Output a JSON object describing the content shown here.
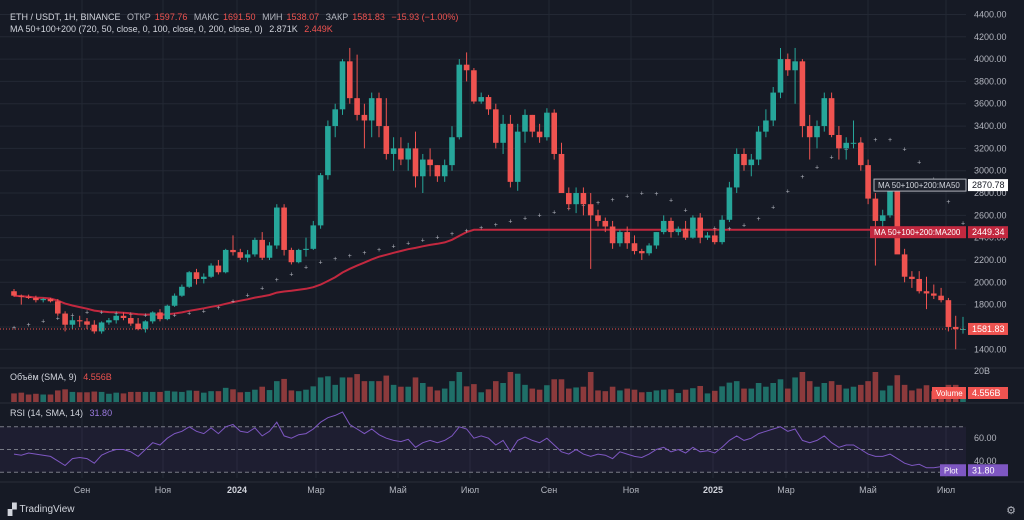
{
  "header": {
    "symbol": "ETH / USDT, 1H, BINANCE",
    "o_label": "ОТКР",
    "o_value": "1597.76",
    "h_label": "МАКС",
    "h_value": "1691.50",
    "l_label": "МИН",
    "l_value": "1538.07",
    "c_label": "ЗАКР",
    "c_value": "1581.83",
    "change": "−15.93 (−1.00%)",
    "ma_label": "MA 50+100+200 (720, 50, close, 0, 100, close, 0, 200, close, 0)",
    "ma_v1": "2.871K",
    "ma_v2": "2.449K"
  },
  "volume_panel": {
    "label": "Объём (SMA, 9)",
    "value": "4.556B"
  },
  "rsi_panel": {
    "label": "RSI (14, SMA, 14)",
    "value": "31.80"
  },
  "brand": "TradingView",
  "colors": {
    "up": "#26a69a",
    "down": "#ef5350",
    "ma50": "#b2b5be",
    "ma200": "#c2283f",
    "rsi": "#7e57c2"
  },
  "chart_data": {
    "type": "candlestick",
    "price_axis": {
      "ticks": [
        1400,
        1600,
        1800,
        2000,
        2200,
        2400,
        2600,
        2800,
        3000,
        3200,
        3400,
        3600,
        3800,
        4000,
        4200,
        4400
      ],
      "range": [
        1250,
        4440
      ]
    },
    "time_axis": {
      "ticks": [
        "Сен",
        "Ноя",
        "2024",
        "Мар",
        "Май",
        "Июл",
        "Сен",
        "Ноя",
        "2025",
        "Мар",
        "Май",
        "Июл"
      ]
    },
    "candles_ohlc": [
      [
        1920,
        1940,
        1870,
        1880
      ],
      [
        1880,
        1890,
        1800,
        1870
      ],
      [
        1870,
        1890,
        1850,
        1860
      ],
      [
        1860,
        1880,
        1820,
        1840
      ],
      [
        1840,
        1860,
        1820,
        1850
      ],
      [
        1850,
        1860,
        1820,
        1830
      ],
      [
        1830,
        1850,
        1700,
        1720
      ],
      [
        1720,
        1740,
        1560,
        1620
      ],
      [
        1620,
        1690,
        1580,
        1660
      ],
      [
        1660,
        1700,
        1600,
        1650
      ],
      [
        1650,
        1680,
        1580,
        1620
      ],
      [
        1620,
        1660,
        1540,
        1560
      ],
      [
        1560,
        1650,
        1540,
        1640
      ],
      [
        1640,
        1680,
        1620,
        1660
      ],
      [
        1660,
        1720,
        1630,
        1700
      ],
      [
        1700,
        1730,
        1660,
        1680
      ],
      [
        1680,
        1720,
        1610,
        1630
      ],
      [
        1630,
        1680,
        1570,
        1580
      ],
      [
        1580,
        1660,
        1550,
        1650
      ],
      [
        1650,
        1740,
        1630,
        1730
      ],
      [
        1730,
        1760,
        1650,
        1670
      ],
      [
        1670,
        1800,
        1660,
        1790
      ],
      [
        1790,
        1900,
        1780,
        1880
      ],
      [
        1880,
        1980,
        1870,
        1960
      ],
      [
        1960,
        2100,
        1950,
        2090
      ],
      [
        2090,
        2120,
        1980,
        2030
      ],
      [
        2030,
        2080,
        1990,
        2050
      ],
      [
        2050,
        2170,
        2040,
        2150
      ],
      [
        2150,
        2200,
        2070,
        2090
      ],
      [
        2090,
        2300,
        2080,
        2290
      ],
      [
        2290,
        2420,
        2240,
        2270
      ],
      [
        2270,
        2300,
        2200,
        2220
      ],
      [
        2220,
        2290,
        2180,
        2250
      ],
      [
        2250,
        2400,
        2230,
        2380
      ],
      [
        2380,
        2450,
        2200,
        2220
      ],
      [
        2220,
        2360,
        2200,
        2330
      ],
      [
        2330,
        2700,
        2300,
        2670
      ],
      [
        2670,
        2700,
        2240,
        2290
      ],
      [
        2290,
        2310,
        2160,
        2180
      ],
      [
        2180,
        2300,
        2170,
        2290
      ],
      [
        2290,
        2400,
        2230,
        2300
      ],
      [
        2300,
        2550,
        2290,
        2510
      ],
      [
        2510,
        2980,
        2480,
        2960
      ],
      [
        2960,
        3450,
        2920,
        3400
      ],
      [
        3400,
        3600,
        3300,
        3550
      ],
      [
        3550,
        4000,
        3500,
        3980
      ],
      [
        3980,
        4100,
        3600,
        3650
      ],
      [
        3650,
        4040,
        3450,
        3500
      ],
      [
        3500,
        3600,
        3200,
        3450
      ],
      [
        3450,
        3700,
        3300,
        3650
      ],
      [
        3650,
        3700,
        3300,
        3400
      ],
      [
        3400,
        3650,
        3100,
        3150
      ],
      [
        3150,
        3300,
        3000,
        3200
      ],
      [
        3200,
        3300,
        3050,
        3100
      ],
      [
        3100,
        3250,
        3000,
        3200
      ],
      [
        3200,
        3350,
        2850,
        2950
      ],
      [
        2950,
        3150,
        2800,
        3100
      ],
      [
        3100,
        3200,
        2950,
        3050
      ],
      [
        3050,
        3050,
        2900,
        2950
      ],
      [
        2950,
        3100,
        2900,
        3050
      ],
      [
        3050,
        3400,
        3000,
        3300
      ],
      [
        3300,
        4000,
        3280,
        3950
      ],
      [
        3950,
        4060,
        3800,
        3900
      ],
      [
        3900,
        3920,
        3600,
        3620
      ],
      [
        3620,
        3700,
        3600,
        3660
      ],
      [
        3660,
        3680,
        3500,
        3550
      ],
      [
        3550,
        3600,
        3200,
        3250
      ],
      [
        3250,
        3500,
        3150,
        3420
      ],
      [
        3420,
        3500,
        2850,
        2900
      ],
      [
        2900,
        3420,
        2820,
        3350
      ],
      [
        3350,
        3550,
        3250,
        3500
      ],
      [
        3500,
        3500,
        3300,
        3350
      ],
      [
        3350,
        3420,
        3250,
        3300
      ],
      [
        3300,
        3560,
        3270,
        3520
      ],
      [
        3520,
        3550,
        3100,
        3150
      ],
      [
        3150,
        3250,
        2800,
        2800
      ],
      [
        2800,
        2850,
        2650,
        2700
      ],
      [
        2700,
        2850,
        2620,
        2800
      ],
      [
        2800,
        2850,
        2600,
        2700
      ],
      [
        2700,
        2800,
        2120,
        2600
      ],
      [
        2600,
        2650,
        2500,
        2550
      ],
      [
        2550,
        2580,
        2450,
        2500
      ],
      [
        2500,
        2550,
        2300,
        2350
      ],
      [
        2350,
        2470,
        2320,
        2450
      ],
      [
        2450,
        2500,
        2300,
        2350
      ],
      [
        2350,
        2420,
        2250,
        2280
      ],
      [
        2280,
        2300,
        2200,
        2260
      ],
      [
        2260,
        2350,
        2240,
        2330
      ],
      [
        2330,
        2450,
        2300,
        2450
      ],
      [
        2450,
        2600,
        2430,
        2550
      ],
      [
        2550,
        2580,
        2400,
        2450
      ],
      [
        2450,
        2500,
        2420,
        2480
      ],
      [
        2480,
        2550,
        2380,
        2400
      ],
      [
        2400,
        2600,
        2390,
        2580
      ],
      [
        2580,
        2620,
        2350,
        2400
      ],
      [
        2400,
        2450,
        2380,
        2420
      ],
      [
        2420,
        2480,
        2340,
        2360
      ],
      [
        2360,
        2600,
        2340,
        2560
      ],
      [
        2560,
        2900,
        2540,
        2850
      ],
      [
        2850,
        3200,
        2800,
        3150
      ],
      [
        3150,
        3200,
        3000,
        3050
      ],
      [
        3050,
        3150,
        2950,
        3100
      ],
      [
        3100,
        3400,
        3050,
        3350
      ],
      [
        3350,
        3550,
        3300,
        3450
      ],
      [
        3450,
        3750,
        3400,
        3700
      ],
      [
        3700,
        4100,
        3650,
        4000
      ],
      [
        4000,
        4050,
        3850,
        3900
      ],
      [
        3900,
        4100,
        3600,
        3980
      ],
      [
        3980,
        4000,
        3300,
        3400
      ],
      [
        3400,
        3500,
        3100,
        3300
      ],
      [
        3300,
        3450,
        3200,
        3400
      ],
      [
        3400,
        3700,
        3350,
        3650
      ],
      [
        3650,
        3700,
        3300,
        3320
      ],
      [
        3320,
        3400,
        3100,
        3200
      ],
      [
        3200,
        3300,
        3100,
        3250
      ],
      [
        3250,
        3450,
        3200,
        3250
      ],
      [
        3250,
        3300,
        3000,
        3050
      ],
      [
        3050,
        3100,
        2700,
        2750
      ],
      [
        2750,
        2800,
        2150,
        2550
      ],
      [
        2550,
        2650,
        2500,
        2600
      ],
      [
        2600,
        2860,
        2580,
        2840
      ],
      [
        2840,
        2860,
        2300,
        2250
      ],
      [
        2250,
        2300,
        2000,
        2050
      ],
      [
        2050,
        2100,
        1950,
        2030
      ],
      [
        2030,
        2100,
        1900,
        1920
      ],
      [
        1920,
        2050,
        1760,
        1900
      ],
      [
        1900,
        1980,
        1850,
        1880
      ],
      [
        1880,
        1950,
        1820,
        1840
      ],
      [
        1840,
        1860,
        1560,
        1600
      ],
      [
        1600,
        1700,
        1400,
        1580
      ],
      [
        1580,
        1690,
        1540,
        1582
      ]
    ],
    "series": [
      {
        "name": "MA 50+100+200:MA50",
        "last_value": "2870.78"
      },
      {
        "name": "MA 50+100+200:MA200",
        "last_value": "2449.34"
      }
    ],
    "last_price": "1581.83",
    "volume": {
      "ticks": [
        "20B"
      ],
      "last_value": "4.556B",
      "tag": "Volume"
    },
    "rsi": {
      "ticks": [
        40.0,
        60.0
      ],
      "levels": [
        30,
        70
      ],
      "last_value": "31.80",
      "tag": "Plot",
      "values": [
        46,
        45,
        47,
        46,
        45,
        44,
        40,
        36,
        42,
        43,
        42,
        38,
        45,
        48,
        50,
        50,
        48,
        44,
        50,
        56,
        54,
        60,
        64,
        66,
        70,
        66,
        64,
        69,
        64,
        70,
        72,
        66,
        65,
        69,
        62,
        66,
        74,
        62,
        60,
        63,
        64,
        68,
        74,
        78,
        80,
        83,
        72,
        68,
        64,
        68,
        63,
        60,
        58,
        57,
        59,
        52,
        56,
        58,
        56,
        58,
        62,
        70,
        68,
        60,
        62,
        60,
        54,
        58,
        48,
        58,
        61,
        58,
        56,
        60,
        54,
        48,
        46,
        50,
        46,
        44,
        46,
        45,
        42,
        48,
        46,
        44,
        43,
        46,
        50,
        52,
        48,
        50,
        47,
        52,
        48,
        49,
        47,
        52,
        58,
        62,
        58,
        60,
        64,
        66,
        68,
        70,
        66,
        68,
        58,
        56,
        58,
        62,
        56,
        52,
        54,
        54,
        50,
        46,
        44,
        44,
        46,
        42,
        38,
        36,
        37,
        34,
        34,
        35,
        32,
        32,
        32
      ]
    }
  }
}
